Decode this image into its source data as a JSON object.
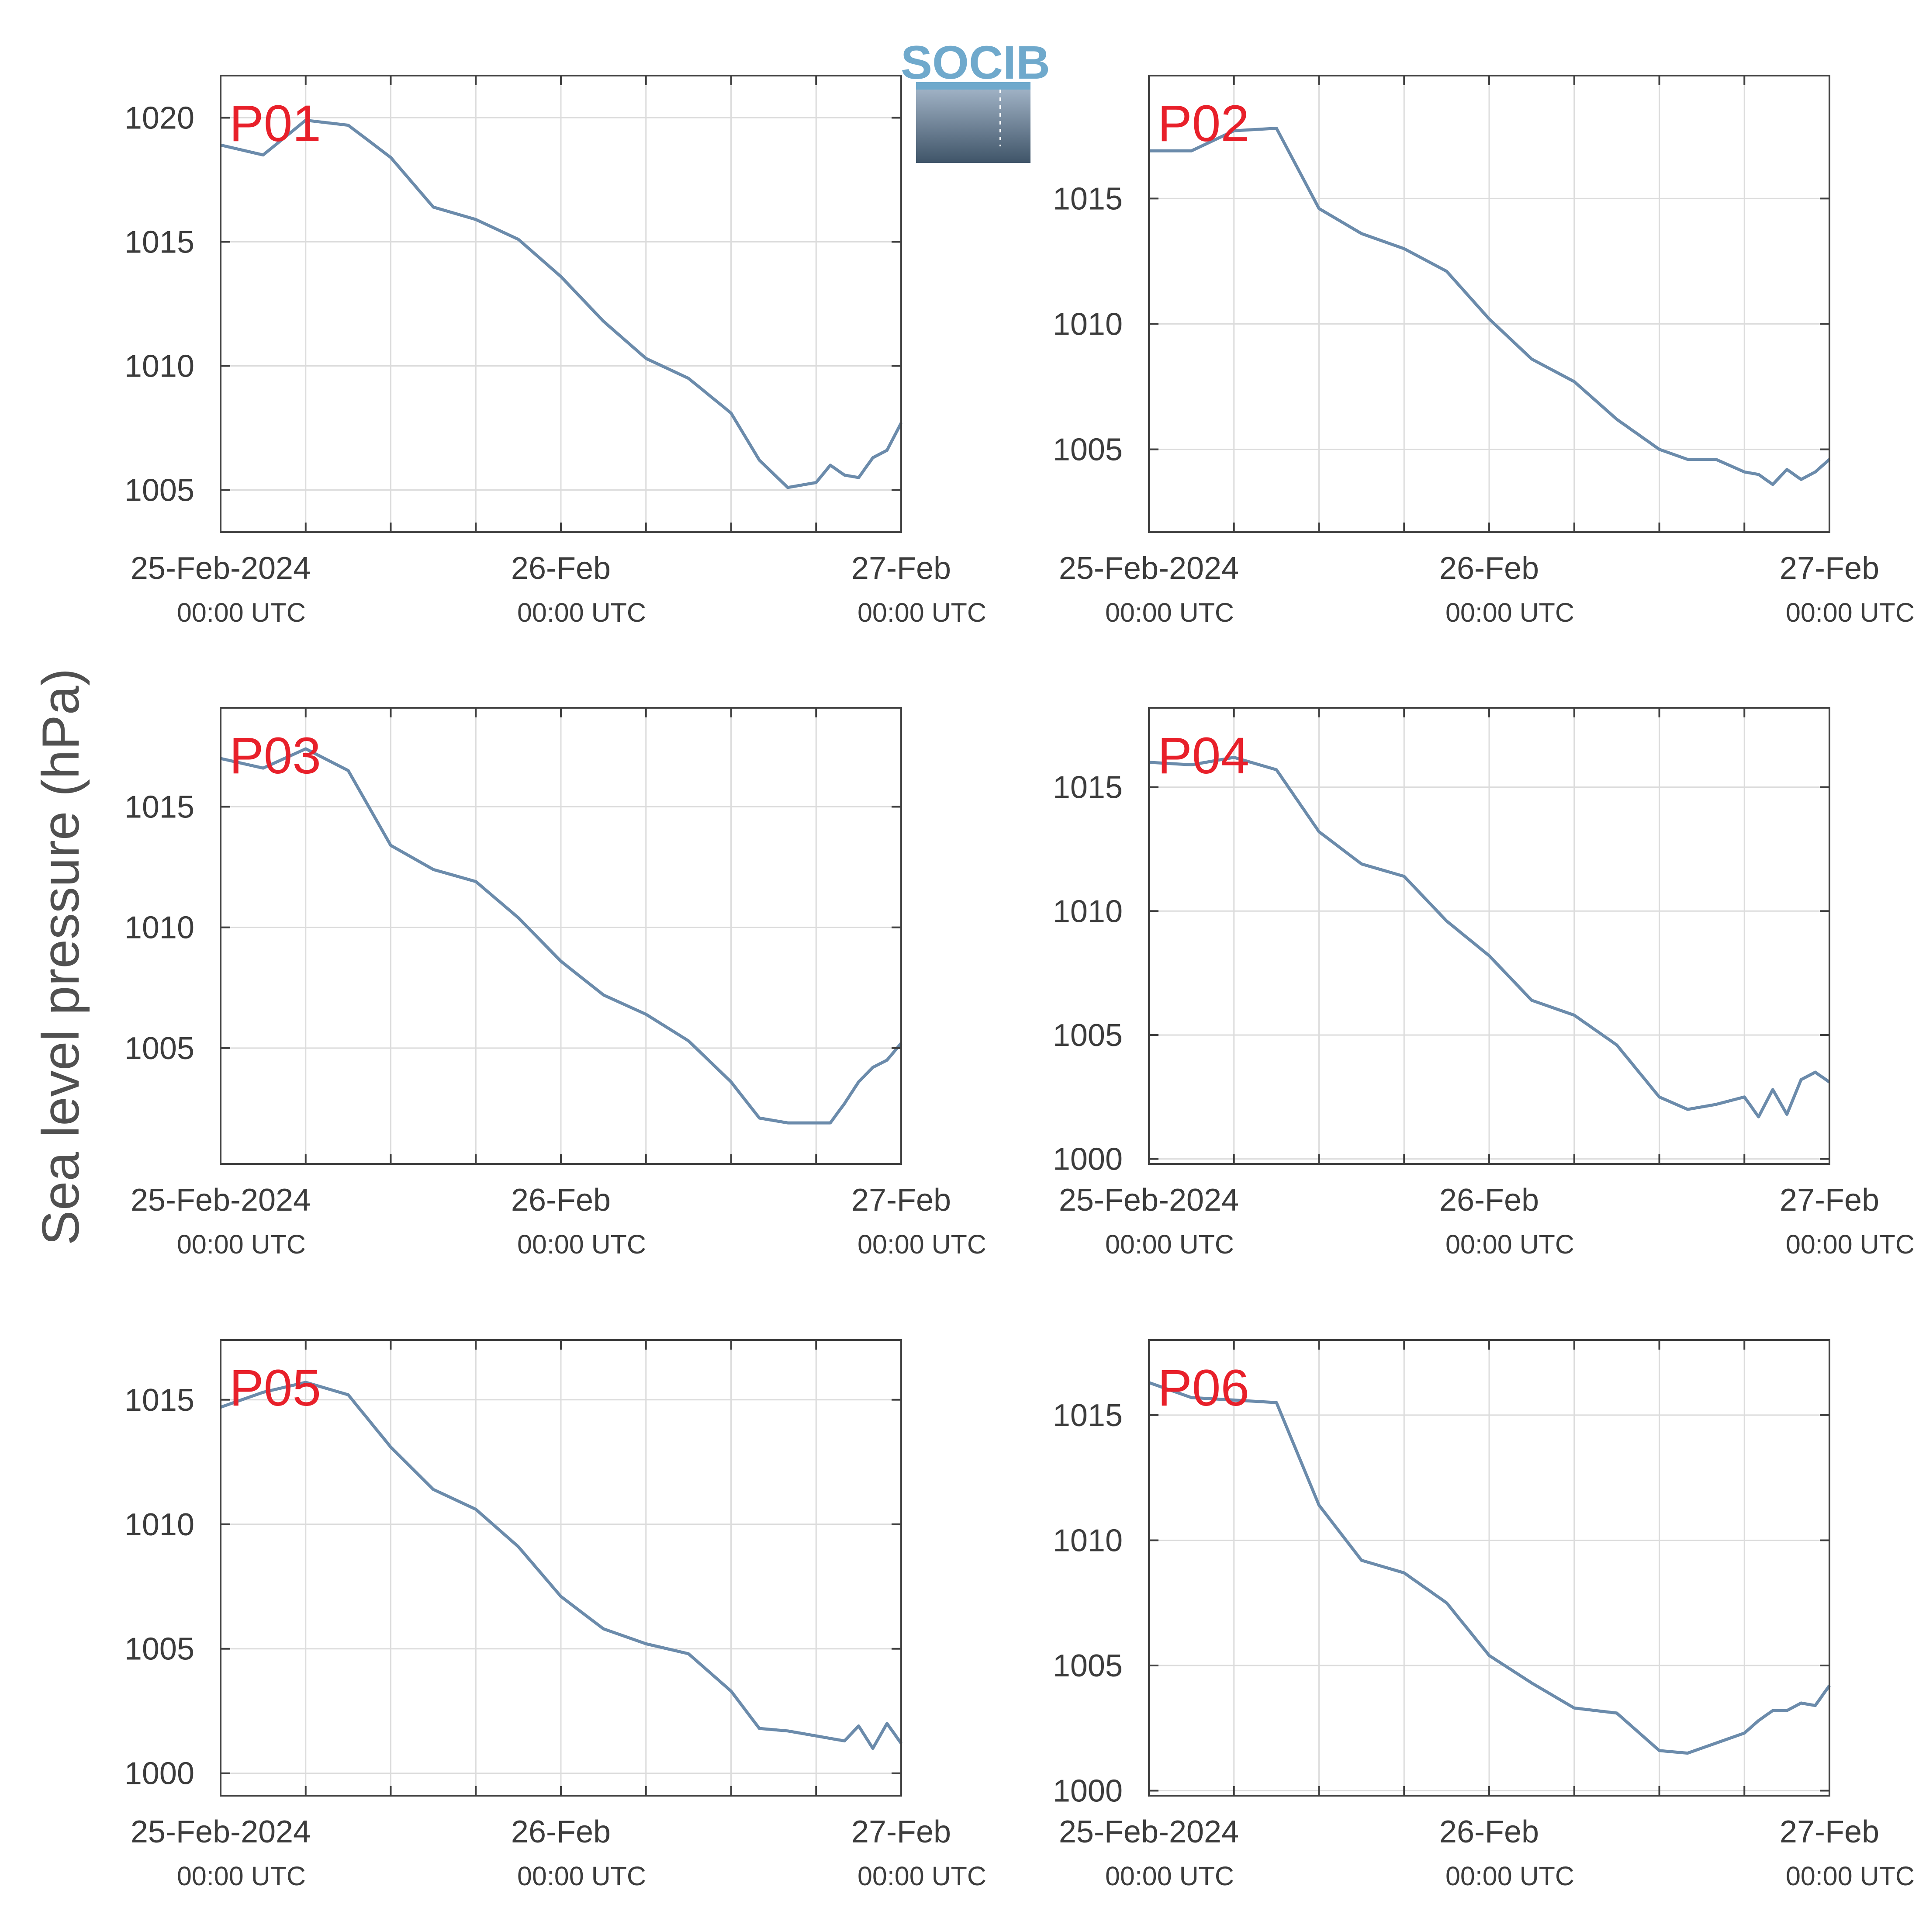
{
  "figure": {
    "ylabel": "Sea level pressure (hPa)",
    "logo": "SOCIB",
    "colors": {
      "series": "#6b8bab",
      "panel_label": "#e8202a",
      "axis": "#404040",
      "grid": "#dcdcdc",
      "logo_top": "#6fa9cc",
      "logo_dark": "#3f5468"
    }
  },
  "chart_data": [
    {
      "type": "line",
      "label": "P01",
      "xlim": [
        "2024-02-25 00:00",
        "2024-02-27 00:00"
      ],
      "ylim": [
        1003.3,
        1021.7
      ],
      "yticks": [
        1005,
        1010,
        1015,
        1020
      ],
      "xticks": [
        {
          "label": "25-Feb-2024",
          "sublabel": "00:00 UTC"
        },
        {
          "label": "26-Feb",
          "sublabel": "00:00 UTC"
        },
        {
          "label": "27-Feb",
          "sublabel": "00:00 UTC"
        }
      ],
      "grid": true,
      "x_hours": [
        0,
        3,
        6,
        9,
        12,
        15,
        18,
        21,
        24,
        27,
        30,
        33,
        36,
        38,
        40,
        42,
        43,
        44,
        45,
        46,
        47,
        48
      ],
      "y": [
        1018.9,
        1018.5,
        1019.9,
        1019.7,
        1018.4,
        1016.4,
        1015.9,
        1015.1,
        1013.6,
        1011.8,
        1010.3,
        1009.5,
        1008.1,
        1006.2,
        1005.1,
        1005.3,
        1006.0,
        1005.6,
        1005.5,
        1006.3,
        1006.6,
        1007.7
      ]
    },
    {
      "type": "line",
      "label": "P02",
      "xlim": [
        "2024-02-25 00:00",
        "2024-02-27 00:00"
      ],
      "ylim": [
        1001.7,
        1019.9
      ],
      "yticks": [
        1005,
        1010,
        1015
      ],
      "xticks": [
        {
          "label": "25-Feb-2024",
          "sublabel": "00:00 UTC"
        },
        {
          "label": "26-Feb",
          "sublabel": "00:00 UTC"
        },
        {
          "label": "27-Feb",
          "sublabel": "00:00 UTC"
        }
      ],
      "grid": true,
      "x_hours": [
        0,
        3,
        6,
        9,
        12,
        15,
        18,
        21,
        24,
        27,
        30,
        33,
        36,
        38,
        40,
        42,
        43,
        44,
        45,
        46,
        47,
        48
      ],
      "y": [
        1016.9,
        1016.9,
        1017.7,
        1017.8,
        1014.6,
        1013.6,
        1013.0,
        1012.1,
        1010.2,
        1008.6,
        1007.7,
        1006.2,
        1005.0,
        1004.6,
        1004.6,
        1004.1,
        1004.0,
        1003.6,
        1004.2,
        1003.8,
        1004.1,
        1004.6
      ]
    },
    {
      "type": "line",
      "label": "P03",
      "xlim": [
        "2024-02-25 00:00",
        "2024-02-27 00:00"
      ],
      "ylim": [
        1000.2,
        1019.1
      ],
      "yticks": [
        1005,
        1010,
        1015
      ],
      "xticks": [
        {
          "label": "25-Feb-2024",
          "sublabel": "00:00 UTC"
        },
        {
          "label": "26-Feb",
          "sublabel": "00:00 UTC"
        },
        {
          "label": "27-Feb",
          "sublabel": "00:00 UTC"
        }
      ],
      "grid": true,
      "x_hours": [
        0,
        3,
        6,
        9,
        12,
        15,
        18,
        21,
        24,
        27,
        30,
        33,
        36,
        38,
        40,
        42,
        43,
        44,
        45,
        46,
        47,
        48
      ],
      "y": [
        1017.0,
        1016.6,
        1017.4,
        1016.5,
        1013.4,
        1012.4,
        1011.9,
        1010.4,
        1008.6,
        1007.2,
        1006.4,
        1005.3,
        1003.6,
        1002.1,
        1001.9,
        1001.9,
        1001.9,
        1002.7,
        1003.6,
        1004.2,
        1004.5,
        1005.2
      ]
    },
    {
      "type": "line",
      "label": "P04",
      "xlim": [
        "2024-02-25 00:00",
        "2024-02-27 00:00"
      ],
      "ylim": [
        999.8,
        1018.2
      ],
      "yticks": [
        1000,
        1005,
        1010,
        1015
      ],
      "xticks": [
        {
          "label": "25-Feb-2024",
          "sublabel": "00:00 UTC"
        },
        {
          "label": "26-Feb",
          "sublabel": "00:00 UTC"
        },
        {
          "label": "27-Feb",
          "sublabel": "00:00 UTC"
        }
      ],
      "grid": true,
      "x_hours": [
        0,
        3,
        6,
        9,
        12,
        15,
        18,
        21,
        24,
        27,
        30,
        33,
        36,
        38,
        40,
        42,
        43,
        44,
        45,
        46,
        47,
        48
      ],
      "y": [
        1016.0,
        1015.9,
        1016.2,
        1015.7,
        1013.2,
        1011.9,
        1011.4,
        1009.6,
        1008.2,
        1006.4,
        1005.8,
        1004.6,
        1002.5,
        1002.0,
        1002.2,
        1002.5,
        1001.7,
        1002.8,
        1001.8,
        1003.2,
        1003.5,
        1003.1
      ]
    },
    {
      "type": "line",
      "label": "P05",
      "xlim": [
        "2024-02-25 00:00",
        "2024-02-27 00:00"
      ],
      "ylim": [
        999.1,
        1017.4
      ],
      "yticks": [
        1000,
        1005,
        1010,
        1015
      ],
      "xticks": [
        {
          "label": "25-Feb-2024",
          "sublabel": "00:00 UTC"
        },
        {
          "label": "26-Feb",
          "sublabel": "00:00 UTC"
        },
        {
          "label": "27-Feb",
          "sublabel": "00:00 UTC"
        }
      ],
      "grid": true,
      "x_hours": [
        0,
        3,
        6,
        9,
        12,
        15,
        18,
        21,
        24,
        27,
        30,
        33,
        36,
        38,
        40,
        42,
        43,
        44,
        45,
        46,
        47,
        48
      ],
      "y": [
        1014.7,
        1015.3,
        1015.7,
        1015.2,
        1013.1,
        1011.4,
        1010.6,
        1009.1,
        1007.1,
        1005.8,
        1005.2,
        1004.8,
        1003.3,
        1001.8,
        1001.7,
        1001.5,
        1001.4,
        1001.3,
        1001.9,
        1001.0,
        1002.0,
        1001.2
      ]
    },
    {
      "type": "line",
      "label": "P06",
      "xlim": [
        "2024-02-25 00:00",
        "2024-02-27 00:00"
      ],
      "ylim": [
        999.8,
        1018.0
      ],
      "yticks": [
        1000,
        1005,
        1010,
        1015
      ],
      "xticks": [
        {
          "label": "25-Feb-2024",
          "sublabel": "00:00 UTC"
        },
        {
          "label": "26-Feb",
          "sublabel": "00:00 UTC"
        },
        {
          "label": "27-Feb",
          "sublabel": "00:00 UTC"
        }
      ],
      "grid": true,
      "x_hours": [
        0,
        3,
        6,
        9,
        12,
        15,
        18,
        21,
        24,
        27,
        30,
        33,
        36,
        38,
        40,
        42,
        43,
        44,
        45,
        46,
        47,
        48
      ],
      "y": [
        1016.3,
        1015.7,
        1015.6,
        1015.5,
        1011.4,
        1009.2,
        1008.7,
        1007.5,
        1005.4,
        1004.3,
        1003.3,
        1003.1,
        1001.6,
        1001.5,
        1001.9,
        1002.3,
        1002.8,
        1003.2,
        1003.2,
        1003.5,
        1003.4,
        1004.2
      ]
    }
  ]
}
